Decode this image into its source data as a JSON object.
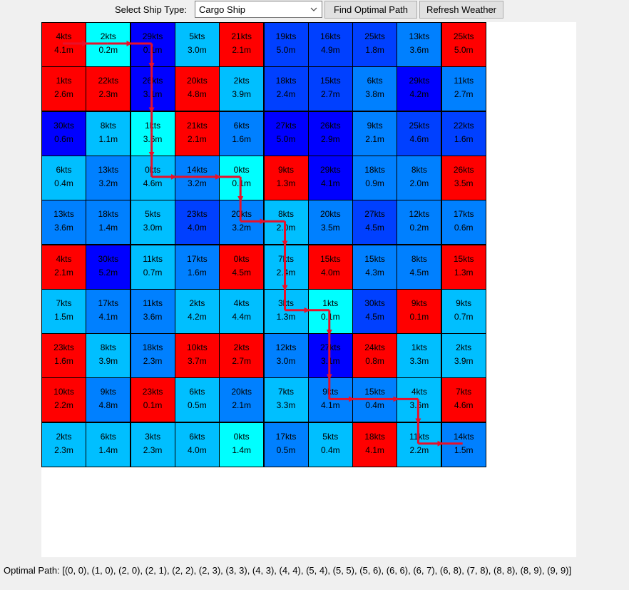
{
  "toolbar": {
    "label": "Select Ship Type:",
    "ship_select_value": "Cargo Ship",
    "find_button_label": "Find Optimal Path",
    "refresh_button_label": "Refresh Weather"
  },
  "icons": {
    "dropdown": "chevron-down-icon"
  },
  "colors": {
    "red": "#ff0000",
    "cyan": "#00ffff",
    "light_blue": "#00bfff",
    "mid_blue": "#0080ff",
    "blue": "#0040ff",
    "deep_blue": "#0000ff",
    "path": "#e8102a"
  },
  "grid": {
    "rows": [
      [
        {
          "speed": "4kts",
          "wave": "4.1m",
          "color": "#ff0000"
        },
        {
          "speed": "2kts",
          "wave": "0.2m",
          "color": "#00ffff"
        },
        {
          "speed": "29kts",
          "wave": "0.1m",
          "color": "#0000ff"
        },
        {
          "speed": "5kts",
          "wave": "3.0m",
          "color": "#00bfff"
        },
        {
          "speed": "21kts",
          "wave": "2.1m",
          "color": "#ff0000"
        },
        {
          "speed": "19kts",
          "wave": "5.0m",
          "color": "#0040ff"
        },
        {
          "speed": "16kts",
          "wave": "4.9m",
          "color": "#0040ff"
        },
        {
          "speed": "25kts",
          "wave": "1.8m",
          "color": "#0040ff"
        },
        {
          "speed": "13kts",
          "wave": "3.6m",
          "color": "#0080ff"
        },
        {
          "speed": "25kts",
          "wave": "5.0m",
          "color": "#ff0000"
        }
      ],
      [
        {
          "speed": "1kts",
          "wave": "2.6m",
          "color": "#ff0000"
        },
        {
          "speed": "22kts",
          "wave": "2.3m",
          "color": "#ff0000"
        },
        {
          "speed": "26kts",
          "wave": "3.1m",
          "color": "#0000ff"
        },
        {
          "speed": "20kts",
          "wave": "4.8m",
          "color": "#ff0000"
        },
        {
          "speed": "2kts",
          "wave": "3.9m",
          "color": "#00bfff"
        },
        {
          "speed": "18kts",
          "wave": "2.4m",
          "color": "#0040ff"
        },
        {
          "speed": "15kts",
          "wave": "2.7m",
          "color": "#0040ff"
        },
        {
          "speed": "6kts",
          "wave": "3.8m",
          "color": "#0080ff"
        },
        {
          "speed": "29kts",
          "wave": "4.2m",
          "color": "#0000ff"
        },
        {
          "speed": "11kts",
          "wave": "2.7m",
          "color": "#0080ff"
        }
      ],
      [
        {
          "speed": "30kts",
          "wave": "0.6m",
          "color": "#0000ff"
        },
        {
          "speed": "8kts",
          "wave": "1.1m",
          "color": "#00bfff"
        },
        {
          "speed": "1kts",
          "wave": "3.6m",
          "color": "#00ffff"
        },
        {
          "speed": "21kts",
          "wave": "2.1m",
          "color": "#ff0000"
        },
        {
          "speed": "6kts",
          "wave": "1.6m",
          "color": "#0080ff"
        },
        {
          "speed": "27kts",
          "wave": "5.0m",
          "color": "#0000ff"
        },
        {
          "speed": "26kts",
          "wave": "2.9m",
          "color": "#0000ff"
        },
        {
          "speed": "9kts",
          "wave": "2.1m",
          "color": "#0080ff"
        },
        {
          "speed": "25kts",
          "wave": "4.6m",
          "color": "#0040ff"
        },
        {
          "speed": "22kts",
          "wave": "1.6m",
          "color": "#0040ff"
        }
      ],
      [
        {
          "speed": "6kts",
          "wave": "0.4m",
          "color": "#00bfff"
        },
        {
          "speed": "13kts",
          "wave": "3.2m",
          "color": "#0080ff"
        },
        {
          "speed": "0kts",
          "wave": "4.6m",
          "color": "#00bfff"
        },
        {
          "speed": "14kts",
          "wave": "3.2m",
          "color": "#0080ff"
        },
        {
          "speed": "0kts",
          "wave": "0.1m",
          "color": "#00ffff"
        },
        {
          "speed": "9kts",
          "wave": "1.3m",
          "color": "#ff0000"
        },
        {
          "speed": "29kts",
          "wave": "4.1m",
          "color": "#0000ff"
        },
        {
          "speed": "18kts",
          "wave": "0.9m",
          "color": "#0080ff"
        },
        {
          "speed": "8kts",
          "wave": "2.0m",
          "color": "#0080ff"
        },
        {
          "speed": "26kts",
          "wave": "3.5m",
          "color": "#ff0000"
        }
      ],
      [
        {
          "speed": "13kts",
          "wave": "3.6m",
          "color": "#0080ff"
        },
        {
          "speed": "18kts",
          "wave": "1.4m",
          "color": "#0080ff"
        },
        {
          "speed": "5kts",
          "wave": "3.0m",
          "color": "#00bfff"
        },
        {
          "speed": "23kts",
          "wave": "4.0m",
          "color": "#0040ff"
        },
        {
          "speed": "20kts",
          "wave": "3.2m",
          "color": "#0080ff"
        },
        {
          "speed": "8kts",
          "wave": "2.0m",
          "color": "#00bfff"
        },
        {
          "speed": "20kts",
          "wave": "3.5m",
          "color": "#0080ff"
        },
        {
          "speed": "27kts",
          "wave": "4.5m",
          "color": "#0040ff"
        },
        {
          "speed": "12kts",
          "wave": "0.2m",
          "color": "#0080ff"
        },
        {
          "speed": "17kts",
          "wave": "0.6m",
          "color": "#0080ff"
        }
      ],
      [
        {
          "speed": "4kts",
          "wave": "2.1m",
          "color": "#ff0000"
        },
        {
          "speed": "30kts",
          "wave": "5.2m",
          "color": "#0000ff"
        },
        {
          "speed": "11kts",
          "wave": "0.7m",
          "color": "#00bfff"
        },
        {
          "speed": "17kts",
          "wave": "1.6m",
          "color": "#0080ff"
        },
        {
          "speed": "0kts",
          "wave": "4.5m",
          "color": "#ff0000"
        },
        {
          "speed": "7kts",
          "wave": "2.4m",
          "color": "#00bfff"
        },
        {
          "speed": "15kts",
          "wave": "4.0m",
          "color": "#ff0000"
        },
        {
          "speed": "15kts",
          "wave": "4.3m",
          "color": "#0080ff"
        },
        {
          "speed": "8kts",
          "wave": "4.5m",
          "color": "#0080ff"
        },
        {
          "speed": "15kts",
          "wave": "1.3m",
          "color": "#ff0000"
        }
      ],
      [
        {
          "speed": "7kts",
          "wave": "1.5m",
          "color": "#00bfff"
        },
        {
          "speed": "17kts",
          "wave": "4.1m",
          "color": "#0080ff"
        },
        {
          "speed": "11kts",
          "wave": "3.6m",
          "color": "#0080ff"
        },
        {
          "speed": "2kts",
          "wave": "4.2m",
          "color": "#00bfff"
        },
        {
          "speed": "4kts",
          "wave": "4.4m",
          "color": "#00bfff"
        },
        {
          "speed": "3kts",
          "wave": "1.3m",
          "color": "#00bfff"
        },
        {
          "speed": "1kts",
          "wave": "0.1m",
          "color": "#00ffff"
        },
        {
          "speed": "30kts",
          "wave": "4.5m",
          "color": "#0040ff"
        },
        {
          "speed": "9kts",
          "wave": "0.1m",
          "color": "#ff0000"
        },
        {
          "speed": "9kts",
          "wave": "0.7m",
          "color": "#00bfff"
        }
      ],
      [
        {
          "speed": "23kts",
          "wave": "1.6m",
          "color": "#ff0000"
        },
        {
          "speed": "8kts",
          "wave": "3.9m",
          "color": "#00bfff"
        },
        {
          "speed": "18kts",
          "wave": "2.3m",
          "color": "#0080ff"
        },
        {
          "speed": "10kts",
          "wave": "3.7m",
          "color": "#ff0000"
        },
        {
          "speed": "2kts",
          "wave": "2.7m",
          "color": "#ff0000"
        },
        {
          "speed": "12kts",
          "wave": "3.0m",
          "color": "#0080ff"
        },
        {
          "speed": "27kts",
          "wave": "3.1m",
          "color": "#0000ff"
        },
        {
          "speed": "24kts",
          "wave": "0.8m",
          "color": "#ff0000"
        },
        {
          "speed": "1kts",
          "wave": "3.3m",
          "color": "#00bfff"
        },
        {
          "speed": "2kts",
          "wave": "3.9m",
          "color": "#00bfff"
        }
      ],
      [
        {
          "speed": "10kts",
          "wave": "2.2m",
          "color": "#ff0000"
        },
        {
          "speed": "9kts",
          "wave": "4.8m",
          "color": "#0080ff"
        },
        {
          "speed": "23kts",
          "wave": "0.1m",
          "color": "#ff0000"
        },
        {
          "speed": "6kts",
          "wave": "0.5m",
          "color": "#00bfff"
        },
        {
          "speed": "20kts",
          "wave": "2.1m",
          "color": "#0080ff"
        },
        {
          "speed": "7kts",
          "wave": "3.3m",
          "color": "#00bfff"
        },
        {
          "speed": "9kts",
          "wave": "4.1m",
          "color": "#0080ff"
        },
        {
          "speed": "15kts",
          "wave": "0.4m",
          "color": "#0080ff"
        },
        {
          "speed": "4kts",
          "wave": "3.6m",
          "color": "#00bfff"
        },
        {
          "speed": "7kts",
          "wave": "4.6m",
          "color": "#ff0000"
        }
      ],
      [
        {
          "speed": "2kts",
          "wave": "2.3m",
          "color": "#00bfff"
        },
        {
          "speed": "6kts",
          "wave": "1.4m",
          "color": "#00bfff"
        },
        {
          "speed": "3kts",
          "wave": "2.3m",
          "color": "#00bfff"
        },
        {
          "speed": "6kts",
          "wave": "4.0m",
          "color": "#00bfff"
        },
        {
          "speed": "0kts",
          "wave": "1.4m",
          "color": "#00ffff"
        },
        {
          "speed": "17kts",
          "wave": "0.5m",
          "color": "#0080ff"
        },
        {
          "speed": "5kts",
          "wave": "0.4m",
          "color": "#00bfff"
        },
        {
          "speed": "18kts",
          "wave": "4.1m",
          "color": "#ff0000"
        },
        {
          "speed": "11kts",
          "wave": "2.2m",
          "color": "#00bfff"
        },
        {
          "speed": "14kts",
          "wave": "1.5m",
          "color": "#0080ff"
        }
      ]
    ]
  },
  "path": [
    [
      0,
      0
    ],
    [
      1,
      0
    ],
    [
      2,
      0
    ],
    [
      2,
      1
    ],
    [
      2,
      2
    ],
    [
      2,
      3
    ],
    [
      3,
      3
    ],
    [
      4,
      3
    ],
    [
      4,
      4
    ],
    [
      5,
      4
    ],
    [
      5,
      5
    ],
    [
      5,
      6
    ],
    [
      6,
      6
    ],
    [
      6,
      7
    ],
    [
      6,
      8
    ],
    [
      7,
      8
    ],
    [
      8,
      8
    ],
    [
      8,
      9
    ],
    [
      9,
      9
    ]
  ],
  "footer": {
    "path_label": "Optimal Path: [(0, 0), (1, 0), (2, 0), (2, 1), (2, 2), (2, 3), (3, 3), (4, 3), (4, 4), (5, 4), (5, 5), (5, 6), (6, 6), (6, 7), (6, 8), (7, 8), (8, 8), (8, 9), (9, 9)]"
  }
}
